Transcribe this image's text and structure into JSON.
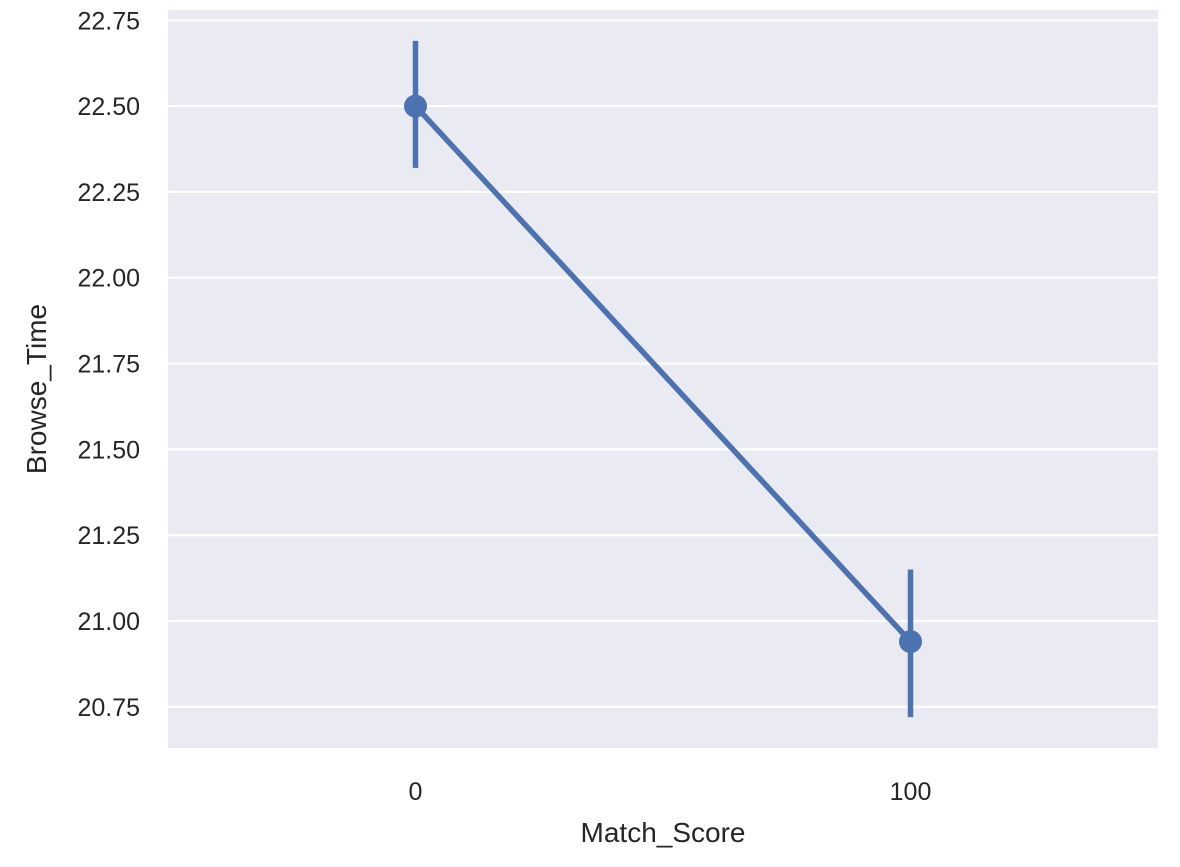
{
  "chart_data": {
    "type": "line",
    "title": "",
    "xlabel": "Match_Score",
    "ylabel": "Browse_Time",
    "categories": [
      "0",
      "100"
    ],
    "series": [
      {
        "values": [
          22.5,
          20.94
        ],
        "ci_low": [
          22.32,
          20.72
        ],
        "ci_high": [
          22.69,
          21.15
        ]
      }
    ],
    "ylim": [
      20.63,
      22.78
    ],
    "yticks": [
      20.75,
      21.0,
      21.25,
      21.5,
      21.75,
      22.0,
      22.25,
      22.5,
      22.75
    ],
    "ytick_labels": [
      "20.75",
      "21.00",
      "21.25",
      "21.50",
      "21.75",
      "22.00",
      "22.25",
      "22.50",
      "22.75"
    ],
    "grid": true,
    "legend": "none",
    "colors": {
      "background": "#eaeaf2",
      "grid": "#ffffff",
      "series": "#4c72b0",
      "text": "#262626"
    }
  }
}
